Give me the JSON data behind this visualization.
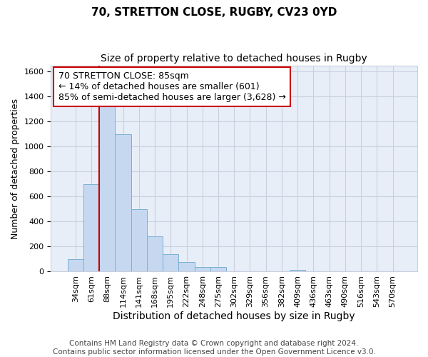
{
  "title_line1": "70, STRETTON CLOSE, RUGBY, CV23 0YD",
  "title_line2": "Size of property relative to detached houses in Rugby",
  "xlabel": "Distribution of detached houses by size in Rugby",
  "ylabel": "Number of detached properties",
  "footer_line1": "Contains HM Land Registry data © Crown copyright and database right 2024.",
  "footer_line2": "Contains public sector information licensed under the Open Government Licence v3.0.",
  "categories": [
    "34sqm",
    "61sqm",
    "88sqm",
    "114sqm",
    "141sqm",
    "168sqm",
    "195sqm",
    "222sqm",
    "248sqm",
    "275sqm",
    "302sqm",
    "329sqm",
    "356sqm",
    "382sqm",
    "409sqm",
    "436sqm",
    "463sqm",
    "490sqm",
    "516sqm",
    "543sqm",
    "570sqm"
  ],
  "values": [
    100,
    700,
    1330,
    1100,
    500,
    280,
    140,
    75,
    35,
    35,
    0,
    0,
    0,
    0,
    15,
    0,
    0,
    0,
    0,
    0,
    0
  ],
  "bar_color": "#c5d8f0",
  "bar_edge_color": "#7bafd4",
  "annotation_line_color": "#cc0000",
  "annotation_box_edge_color": "#cc0000",
  "annotation_box_text_line1": "70 STRETTON CLOSE: 85sqm",
  "annotation_box_text_line2": "← 14% of detached houses are smaller (601)",
  "annotation_box_text_line3": "85% of semi-detached houses are larger (3,628) →",
  "ylim": [
    0,
    1650
  ],
  "yticks": [
    0,
    200,
    400,
    600,
    800,
    1000,
    1200,
    1400,
    1600
  ],
  "grid_color": "#c8d0e0",
  "plot_bg_color": "#e8eef8",
  "fig_bg_color": "#ffffff",
  "title1_fontsize": 11,
  "title2_fontsize": 10,
  "xlabel_fontsize": 10,
  "ylabel_fontsize": 9,
  "tick_fontsize": 8,
  "annotation_fontsize": 9,
  "footer_fontsize": 7.5
}
